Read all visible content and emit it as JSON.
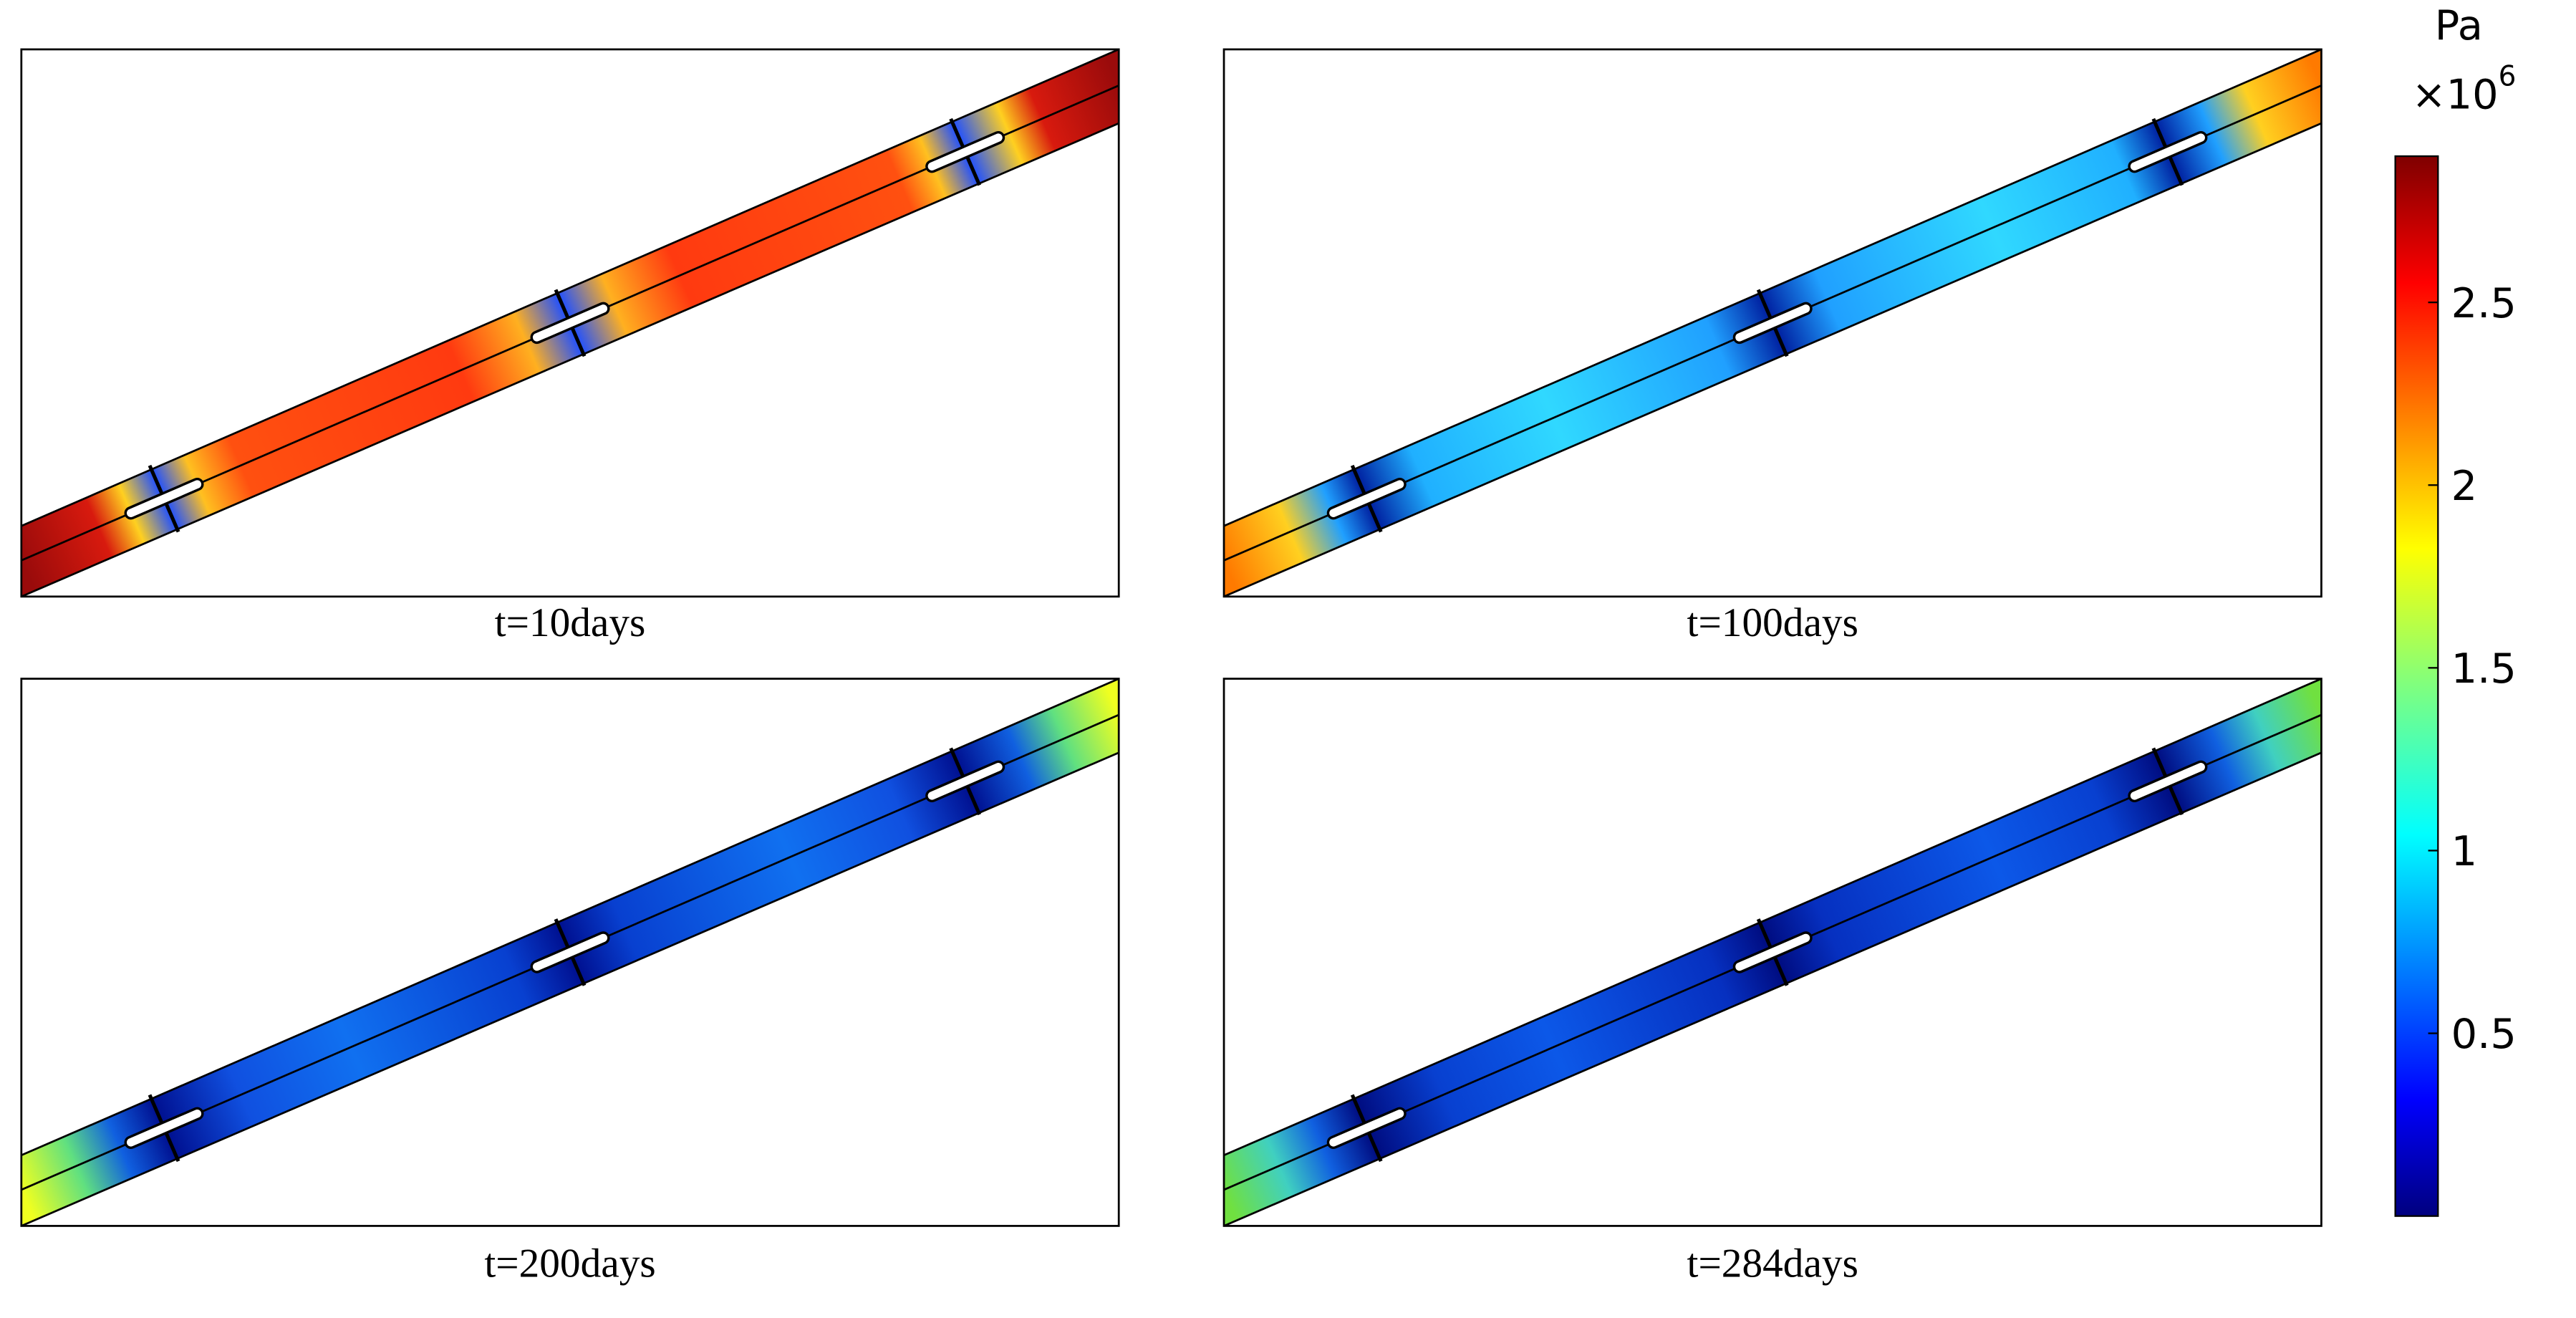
{
  "panels": [
    {
      "caption": "t=10days"
    },
    {
      "caption": "t=100days"
    },
    {
      "caption": "t=200days"
    },
    {
      "caption": "t=284days"
    }
  ],
  "colorbar": {
    "unit": "Pa",
    "multiplier": "×10",
    "exponent": "6",
    "range": [
      0,
      2.9
    ],
    "ticks": [
      0.5,
      1,
      1.5,
      2,
      2.5
    ]
  }
}
